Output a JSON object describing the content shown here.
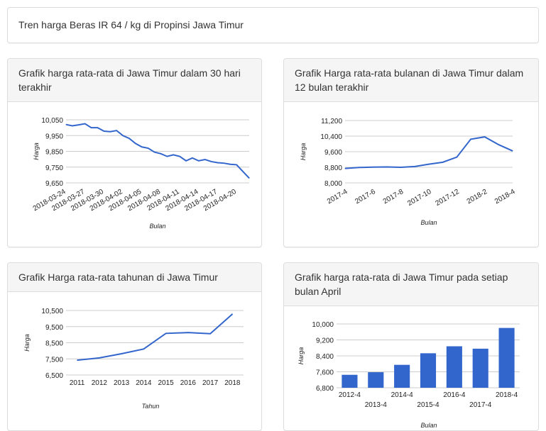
{
  "header": {
    "title": "Tren harga Beras IR 64 / kg di Propinsi Jawa Timur"
  },
  "colors": {
    "line": "#3366cc",
    "bar": "#3366cc",
    "grid": "#cccccc",
    "text": "#222222",
    "panel_heading_bg": "#f5f5f5"
  },
  "panels": [
    {
      "title": "Grafik harga rata-rata di Jawa Timur dalam 30 hari terakhir"
    },
    {
      "title": "Grafik Harga rata-rata bulanan di Jawa Timur dalam 12 bulan terakhir"
    },
    {
      "title": "Grafik Harga rata-rata tahunan di Jawa Timur"
    },
    {
      "title": "Grafik harga rata-rata di Jawa Timur pada setiap bulan April"
    }
  ],
  "chart_data": [
    {
      "type": "line",
      "xlabel": "Bulan",
      "ylabel": "Harga",
      "ylim": [
        9650,
        10050
      ],
      "yticks": [
        9650,
        9750,
        9850,
        9950,
        10050
      ],
      "ytick_labels": [
        "9,650",
        "9,750",
        "9,850",
        "9,950",
        "10,050"
      ],
      "x_tick_labels": [
        "2018-03-24",
        "2018-03-27",
        "2018-03-30",
        "2018-04-02",
        "2018-04-05",
        "2018-04-08",
        "2018-04-11",
        "2018-04-14",
        "2018-04-17",
        "2018-04-20"
      ],
      "x_tick_index": [
        0,
        3,
        6,
        9,
        12,
        15,
        18,
        21,
        24,
        27
      ],
      "values": [
        10020,
        10012,
        10018,
        10025,
        10000,
        10000,
        9978,
        9975,
        9982,
        9950,
        9932,
        9900,
        9878,
        9870,
        9845,
        9835,
        9818,
        9828,
        9818,
        9790,
        9808,
        9790,
        9798,
        9785,
        9778,
        9775,
        9768,
        9765,
        9722,
        9680
      ],
      "grid": true
    },
    {
      "type": "line",
      "xlabel": "Bulan",
      "ylabel": "Harga",
      "ylim": [
        8000,
        11200
      ],
      "yticks": [
        8000,
        8800,
        9600,
        10400,
        11200
      ],
      "ytick_labels": [
        "8,000",
        "8,800",
        "9,600",
        "10,400",
        "11,200"
      ],
      "x": [
        "2017-4",
        "2017-5",
        "2017-6",
        "2017-7",
        "2017-8",
        "2017-9",
        "2017-10",
        "2017-11",
        "2017-12",
        "2018-1",
        "2018-2",
        "2018-3",
        "2018-4"
      ],
      "x_tick_labels": [
        "2017-4",
        "2017-6",
        "2017-8",
        "2017-10",
        "2017-12",
        "2018-2",
        "2018-4"
      ],
      "values": [
        8740,
        8790,
        8810,
        8820,
        8800,
        8840,
        8960,
        9060,
        9320,
        10240,
        10360,
        9960,
        9640
      ],
      "grid": true
    },
    {
      "type": "line",
      "xlabel": "Tahun",
      "ylabel": "Harga",
      "ylim": [
        6500,
        10500
      ],
      "yticks": [
        6500,
        7500,
        8500,
        9500,
        10500
      ],
      "ytick_labels": [
        "6,500",
        "7,500",
        "8,500",
        "9,500",
        "10,500"
      ],
      "x": [
        "2011",
        "2012",
        "2013",
        "2014",
        "2015",
        "2016",
        "2017",
        "2018"
      ],
      "values": [
        7420,
        7560,
        7820,
        8110,
        9080,
        9130,
        9060,
        10280
      ],
      "grid": true
    },
    {
      "type": "bar",
      "xlabel": "Bulan",
      "ylabel": "Harga",
      "ylim": [
        6800,
        10000
      ],
      "yticks": [
        6800,
        7600,
        8400,
        9200,
        10000
      ],
      "ytick_labels": [
        "6,800",
        "7,600",
        "8,400",
        "9,200",
        "10,000"
      ],
      "categories": [
        "2012-4",
        "2013-4",
        "2014-4",
        "2015-4",
        "2016-4",
        "2017-4",
        "2018-4"
      ],
      "values": [
        7450,
        7580,
        7950,
        8530,
        8880,
        8760,
        9800
      ],
      "grid": true
    }
  ]
}
